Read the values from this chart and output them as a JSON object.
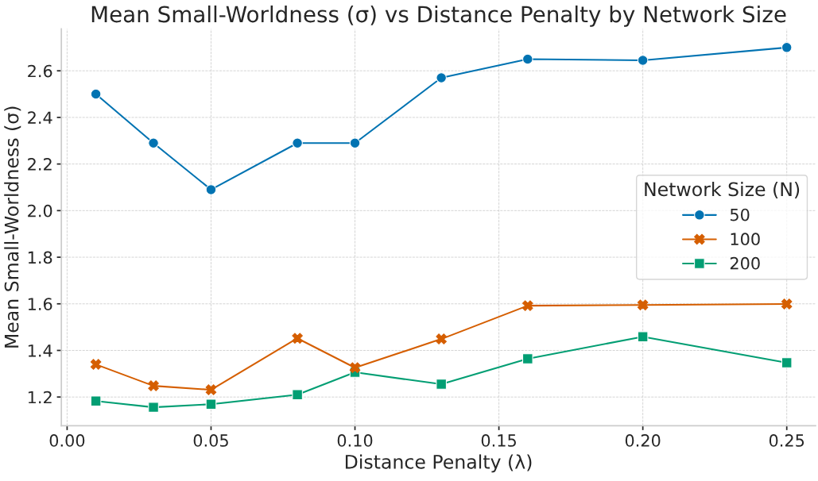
{
  "chart_data": {
    "type": "line",
    "title": "Mean Small-Worldness (σ) vs Distance Penalty by Network Size",
    "xlabel": "Distance Penalty (λ)",
    "ylabel": "Mean Small-Worldness (σ)",
    "legend_title": "Network Size (N)",
    "x": [
      0.01,
      0.03,
      0.05,
      0.08,
      0.1,
      0.13,
      0.16,
      0.2,
      0.25
    ],
    "series": [
      {
        "name": "50",
        "color": "#0173b2",
        "marker": "circle",
        "values": [
          2.5,
          2.29,
          2.09,
          2.29,
          2.29,
          2.57,
          2.65,
          2.645,
          2.7
        ]
      },
      {
        "name": "100",
        "color": "#d55e00",
        "marker": "cross",
        "values": [
          1.34,
          1.248,
          1.231,
          1.452,
          1.326,
          1.449,
          1.592,
          1.595,
          1.599
        ]
      },
      {
        "name": "200",
        "color": "#029e73",
        "marker": "square",
        "values": [
          1.183,
          1.156,
          1.169,
          1.21,
          1.306,
          1.255,
          1.364,
          1.459,
          1.347
        ]
      }
    ],
    "xlim": [
      -0.002,
      0.26
    ],
    "xticks": [
      {
        "value": 0.0,
        "label": "0.00"
      },
      {
        "value": 0.05,
        "label": "0.05"
      },
      {
        "value": 0.1,
        "label": "0.10"
      },
      {
        "value": 0.15,
        "label": "0.15"
      },
      {
        "value": 0.2,
        "label": "0.20"
      },
      {
        "value": 0.25,
        "label": "0.25"
      }
    ],
    "ylim": [
      1.077,
      2.78
    ],
    "yticks": [
      {
        "value": 1.2,
        "label": "1.2"
      },
      {
        "value": 1.4,
        "label": "1.4"
      },
      {
        "value": 1.6,
        "label": "1.6"
      },
      {
        "value": 1.8,
        "label": "1.8"
      },
      {
        "value": 2.0,
        "label": "2.0"
      },
      {
        "value": 2.2,
        "label": "2.2"
      },
      {
        "value": 2.4,
        "label": "2.4"
      },
      {
        "value": 2.6,
        "label": "2.6"
      }
    ],
    "grid": true,
    "legend": "right",
    "line_style": "solid"
  }
}
